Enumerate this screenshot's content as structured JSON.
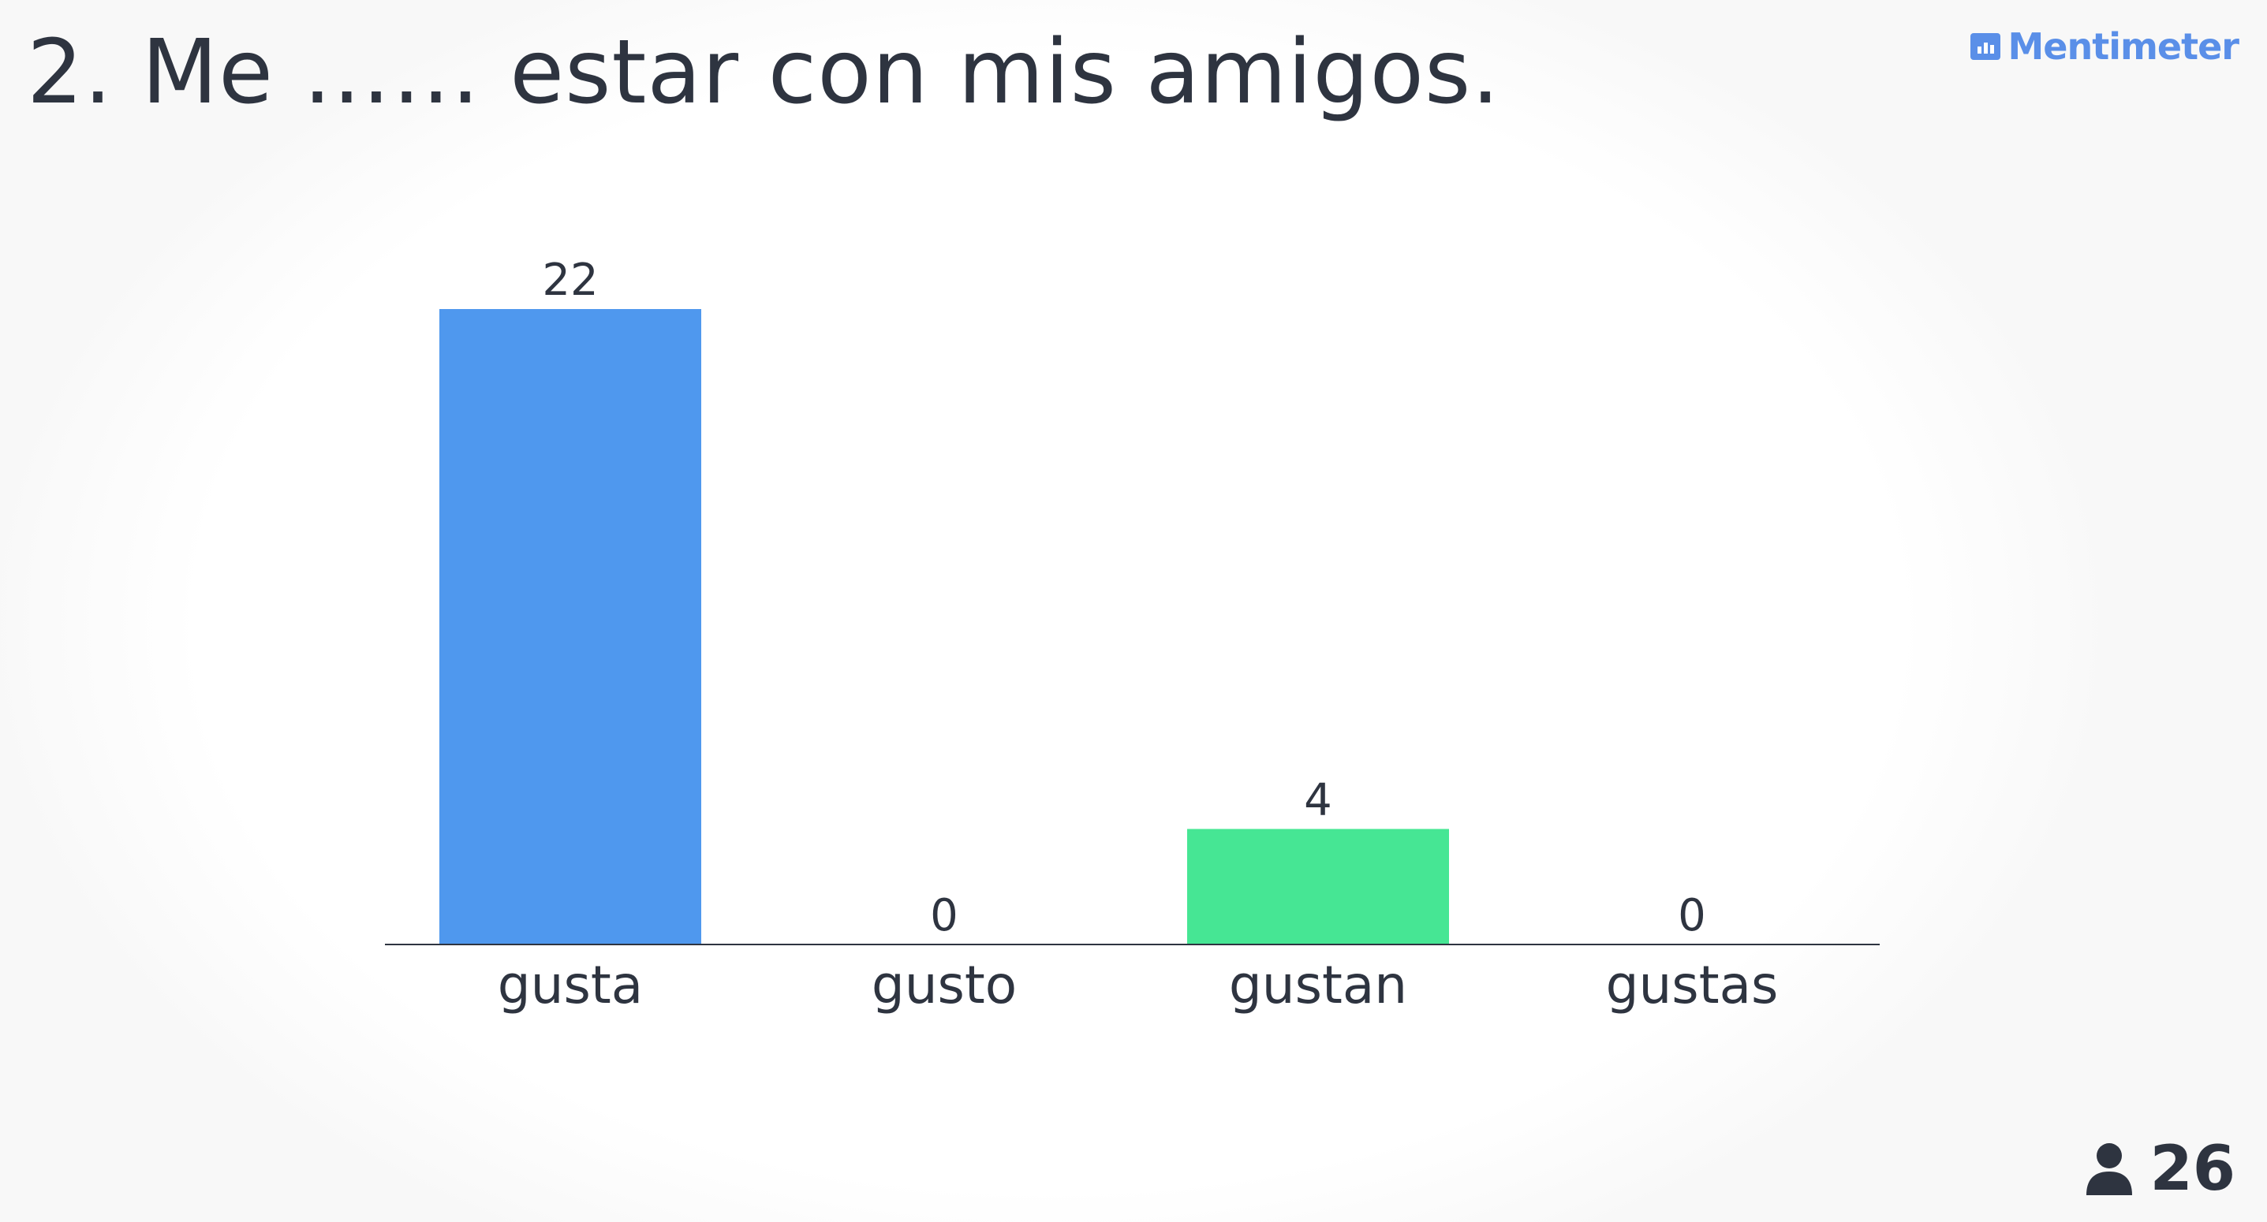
{
  "slide": {
    "title": "2. Me …… estar con mis amigos."
  },
  "brand": {
    "name": "Mentimeter",
    "color": "#5a8fe8",
    "icon": "mentimeter-logo-icon"
  },
  "participants": {
    "count": "26",
    "icon": "person-icon"
  },
  "chart_data": {
    "type": "bar",
    "categories": [
      "gusta",
      "gusto",
      "gustan",
      "gustas"
    ],
    "values": [
      22,
      0,
      4,
      0
    ],
    "colors": [
      "#4f98ee",
      "#4f98ee",
      "#46e694",
      "#46e694"
    ],
    "title": "",
    "xlabel": "",
    "ylabel": "",
    "ylim": [
      0,
      22
    ],
    "grid": false,
    "legend": "none"
  }
}
